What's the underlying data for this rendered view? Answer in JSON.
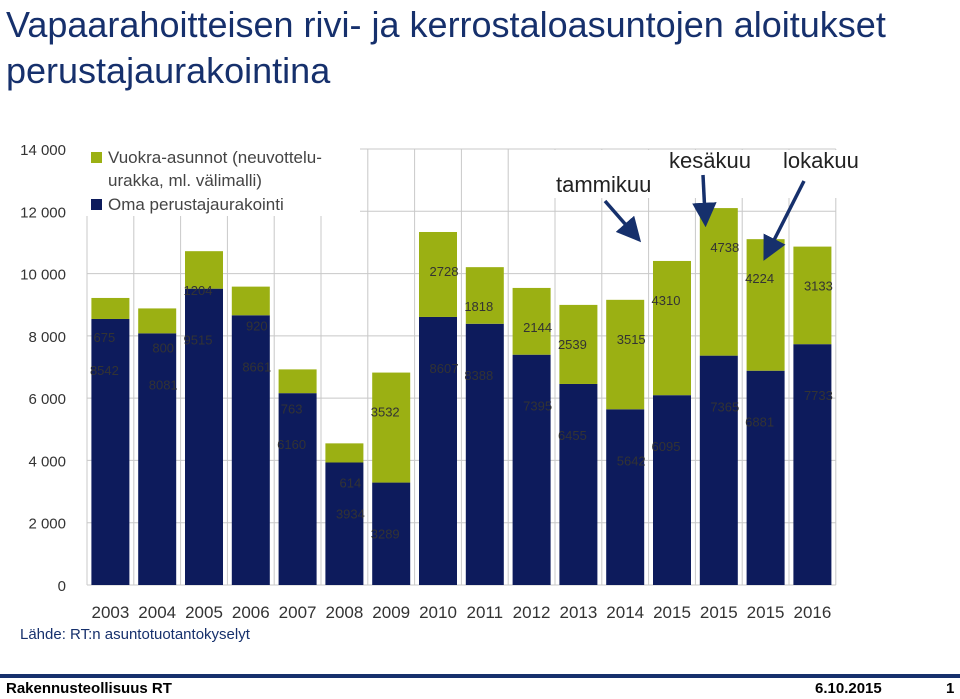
{
  "title": "Vapaarahoitteisen rivi- ja kerrostaloasuntojen aloitukset perustajaurakointina",
  "source": "Lähde: RT:n asuntotuotantokyselyt",
  "footer": {
    "org": "Rakennusteollisuus RT",
    "date": "6.10.2015",
    "page": "1"
  },
  "colors": {
    "rental": "#9bb013",
    "own": "#0d1b5c",
    "grid": "#c8c8c8",
    "label": "#333333",
    "axis": "#333333",
    "arrow": "#16306c"
  },
  "chart_data": {
    "type": "bar",
    "stacked": true,
    "categories": [
      "2003",
      "2004",
      "2005",
      "2006",
      "2007",
      "2008",
      "2009",
      "2010",
      "2011",
      "2012",
      "2013",
      "2014",
      "2015",
      "2015",
      "2015",
      "2016"
    ],
    "series": [
      {
        "name": "Oma perustajaurakointi",
        "values": [
          8542,
          8081,
          9515,
          8661,
          6160,
          3934,
          3289,
          8607,
          8388,
          7395,
          6455,
          5642,
          6095,
          7365,
          6881,
          7733
        ]
      },
      {
        "name": "Vuokra-asunnot (neuvotteluurakka, ml. välimalli)",
        "values": [
          675,
          800,
          1204,
          920,
          763,
          614,
          3532,
          2728,
          1818,
          2144,
          2539,
          3515,
          4310,
          4738,
          4224,
          3133
        ]
      }
    ],
    "legend": [
      "Vuokra-asunnot (neuvottelu-",
      "urakka, ml. välimalli)",
      "Oma perustajaurakointi"
    ],
    "legend_position": "top-left",
    "yticks": [
      "0",
      "2 000",
      "4 000",
      "6 000",
      "8 000",
      "10 000",
      "12 000",
      "14 000"
    ],
    "ylim": [
      0,
      14000
    ],
    "annotations": [
      {
        "text": "tammikuu",
        "category_index": 12
      },
      {
        "text": "kesäkuu",
        "category_index": 13
      },
      {
        "text": "lokakuu",
        "category_index": 14
      }
    ]
  }
}
